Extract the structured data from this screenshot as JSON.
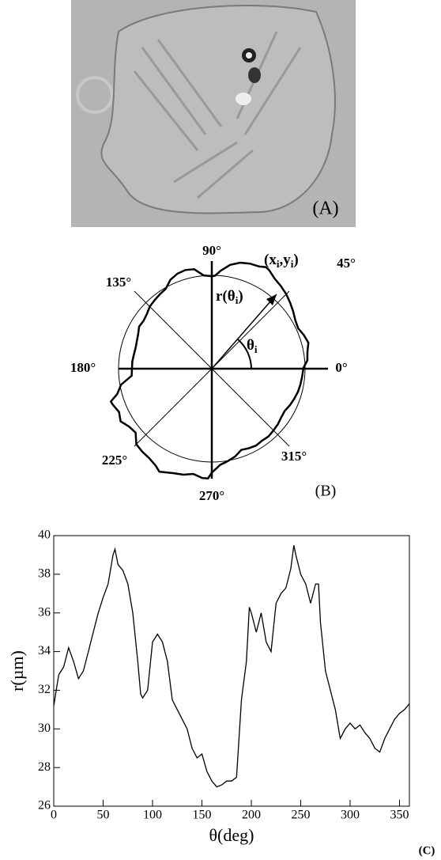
{
  "panel_a": {
    "label": "(A)"
  },
  "panel_b": {
    "label": "(B)",
    "angles": [
      "0°",
      "45°",
      "90°",
      "135°",
      "180°",
      "225°",
      "270°",
      "315°"
    ],
    "point_label": [
      "(x",
      "i",
      ",y",
      "i",
      ")"
    ],
    "radius_label": [
      "r(θ",
      "i",
      ")"
    ],
    "angle_label": [
      "θ",
      "i"
    ]
  },
  "chart_data": {
    "type": "line",
    "label": "(C)",
    "x_label": "θ(deg)",
    "y_label": "r(µm)",
    "color": "#000000",
    "x": [
      0,
      5,
      10,
      15,
      20,
      25,
      30,
      35,
      40,
      45,
      50,
      55,
      60,
      62,
      65,
      70,
      75,
      80,
      85,
      88,
      90,
      95,
      100,
      105,
      110,
      115,
      120,
      125,
      130,
      135,
      140,
      145,
      150,
      155,
      160,
      165,
      170,
      175,
      180,
      185,
      190,
      195,
      198,
      200,
      205,
      210,
      215,
      220,
      225,
      230,
      235,
      240,
      243,
      245,
      250,
      255,
      260,
      265,
      268,
      270,
      275,
      280,
      285,
      290,
      295,
      300,
      305,
      310,
      315,
      320,
      325,
      330,
      335,
      340,
      345,
      350,
      355,
      360
    ],
    "values": [
      31.2,
      32.8,
      33.2,
      34.2,
      33.5,
      32.6,
      33.0,
      34.0,
      35.0,
      36.0,
      36.8,
      37.5,
      39.0,
      39.3,
      38.5,
      38.2,
      37.5,
      36.0,
      33.5,
      31.8,
      31.6,
      32.0,
      34.5,
      34.9,
      34.5,
      33.5,
      31.5,
      31.0,
      30.5,
      30.0,
      29.0,
      28.5,
      28.7,
      27.8,
      27.3,
      27.0,
      27.1,
      27.3,
      27.3,
      27.5,
      31.5,
      33.5,
      36.3,
      36.0,
      35.0,
      36.0,
      34.5,
      34.0,
      36.5,
      37.0,
      37.3,
      38.3,
      39.5,
      39.0,
      38.0,
      37.5,
      36.5,
      37.5,
      37.5,
      35.5,
      33.0,
      32.0,
      31.0,
      29.5,
      30.0,
      30.3,
      30.0,
      30.2,
      29.8,
      29.5,
      29.0,
      28.8,
      29.5,
      30.0,
      30.5,
      30.8,
      31.0,
      31.3
    ],
    "xlim": [
      0,
      360
    ],
    "xticks": [
      0,
      50,
      100,
      150,
      200,
      250,
      300,
      350
    ],
    "ylim": [
      26,
      40
    ],
    "yticks": [
      26,
      28,
      30,
      32,
      34,
      36,
      38,
      40
    ]
  }
}
